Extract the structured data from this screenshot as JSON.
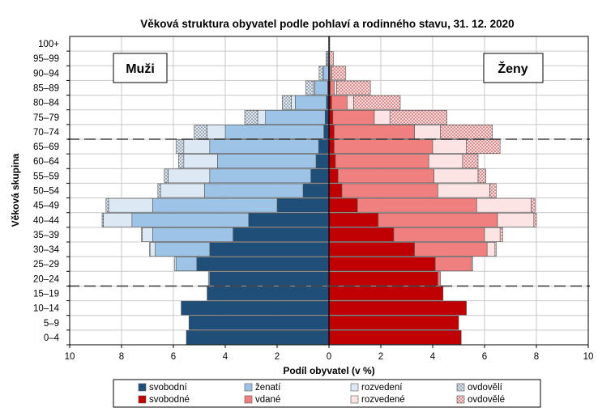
{
  "chart_data": {
    "type": "bar",
    "title": "Věková struktura obyvatel podle pohlaví a rodinného stavu, 31. 12. 2020",
    "xlabel": "Podíl obyvatel (v %)",
    "ylabel": "Věková skupina",
    "x_ticks": [
      "10",
      "8",
      "6",
      "4",
      "2",
      "0",
      "2",
      "4",
      "6",
      "8",
      "10"
    ],
    "xlim": [
      -10,
      10
    ],
    "grid": true,
    "dashed_age_boundaries": [
      "15–19",
      "65–69"
    ],
    "panel_labels": {
      "male": "Muži",
      "female": "Ženy"
    },
    "categories": [
      "0–4",
      "5–9",
      "10–14",
      "15–19",
      "20–24",
      "25–29",
      "30–34",
      "35–39",
      "40–44",
      "45–49",
      "50–54",
      "55–59",
      "60–64",
      "65–69",
      "70–74",
      "75–79",
      "80–84",
      "85–89",
      "90–94",
      "95–99",
      "100+"
    ],
    "colors": {
      "svobodni": "#1f4e79",
      "zenati": "#9dc3e6",
      "rozvedeni": "#dce9f5",
      "ovdoveli": "#dce9f5",
      "svobodne": "#c00000",
      "vdane": "#f08080",
      "rozvedene": "#fde4e4",
      "ovdovele": "#f4c7c7"
    },
    "male": {
      "svobodni": [
        5.5,
        5.4,
        5.7,
        4.7,
        4.6,
        5.1,
        4.6,
        3.7,
        3.1,
        2.0,
        1.0,
        0.7,
        0.5,
        0.4,
        0.2,
        0.15,
        0.1,
        0.05,
        0.02,
        0.01,
        0.0
      ],
      "zenati": [
        0,
        0,
        0,
        0,
        0.05,
        0.8,
        2.1,
        3.1,
        4.5,
        4.8,
        3.8,
        3.9,
        3.8,
        4.2,
        3.8,
        2.3,
        1.2,
        0.5,
        0.2,
        0.05,
        0.0
      ],
      "rozvedeni": [
        0,
        0,
        0,
        0,
        0,
        0.05,
        0.2,
        0.4,
        1.1,
        1.7,
        1.7,
        1.6,
        1.3,
        1.0,
        0.7,
        0.3,
        0.15,
        0.05,
        0.01,
        0,
        0
      ],
      "ovdoveli": [
        0,
        0,
        0,
        0,
        0,
        0,
        0.02,
        0.03,
        0.05,
        0.1,
        0.1,
        0.15,
        0.2,
        0.3,
        0.5,
        0.5,
        0.35,
        0.3,
        0.15,
        0.05,
        0.01
      ]
    },
    "female": {
      "svobodne": [
        5.1,
        5.0,
        5.3,
        4.4,
        4.2,
        4.1,
        3.3,
        2.5,
        1.9,
        1.1,
        0.5,
        0.35,
        0.25,
        0.2,
        0.2,
        0.15,
        0.1,
        0.05,
        0.02,
        0.01,
        0.0
      ],
      "vdane": [
        0,
        0,
        0,
        0,
        0.1,
        1.4,
        2.8,
        3.5,
        4.6,
        4.6,
        3.7,
        3.7,
        3.6,
        3.8,
        3.1,
        1.6,
        0.6,
        0.15,
        0.05,
        0.01,
        0
      ],
      "rozvedene": [
        0,
        0,
        0,
        0,
        0,
        0.05,
        0.3,
        0.6,
        1.4,
        2.1,
        2.0,
        1.7,
        1.3,
        1.3,
        1.0,
        0.6,
        0.25,
        0.1,
        0.03,
        0,
        0
      ],
      "ovdovele": [
        0,
        0,
        0,
        0,
        0,
        0,
        0.05,
        0.1,
        0.1,
        0.15,
        0.25,
        0.3,
        0.6,
        1.3,
        2.0,
        2.2,
        1.8,
        1.3,
        0.55,
        0.15,
        0.03
      ]
    },
    "legend": [
      [
        "svobodní",
        "ženatí",
        "rozvedení",
        "ovdovělí"
      ],
      [
        "svobodné",
        "vdané",
        "rozvedené",
        "ovdovělé"
      ]
    ]
  }
}
